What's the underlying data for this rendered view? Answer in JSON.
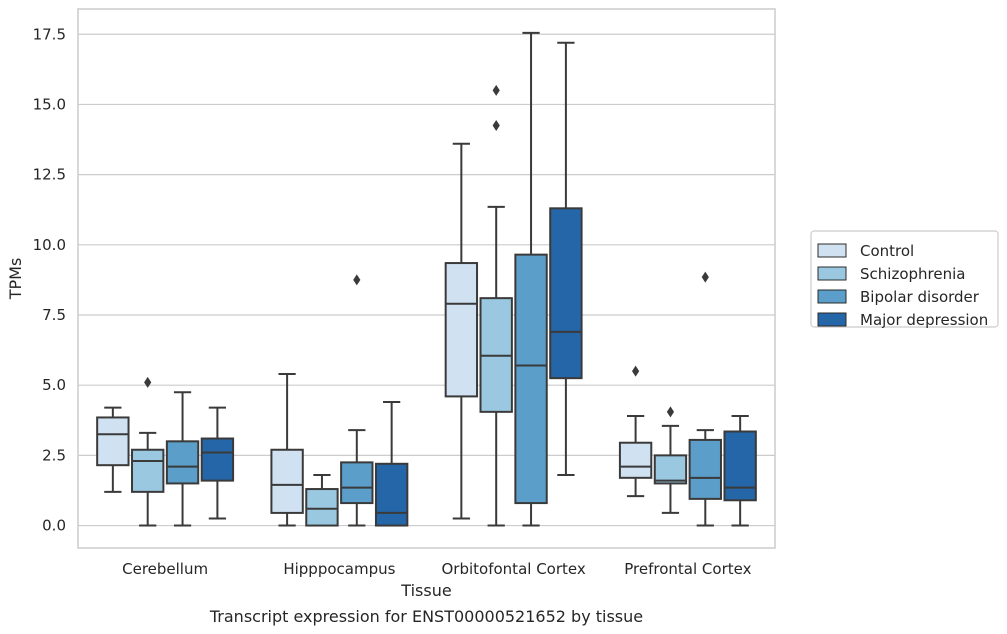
{
  "chart_data": {
    "type": "box",
    "title": "Transcript expression for ENST00000521652 by tissue",
    "xlabel": "Tissue",
    "ylabel": "TPMs",
    "ylim": [
      -0.8,
      18.4
    ],
    "yticks": [
      0.0,
      2.5,
      5.0,
      7.5,
      10.0,
      12.5,
      15.0,
      17.5
    ],
    "ytick_labels": [
      "0.0",
      "2.5",
      "5.0",
      "7.5",
      "10.0",
      "12.5",
      "15.0",
      "17.5"
    ],
    "grid": "horizontal",
    "legend_placement": "right",
    "categories": [
      "Cerebellum",
      "Hipppocampus",
      "Orbitofontal Cortex",
      "Prefrontal Cortex"
    ],
    "series": [
      {
        "name": "Control",
        "color": "#d0e2f2",
        "boxes": [
          {
            "whisker_low": 1.2,
            "q1": 2.15,
            "median": 3.25,
            "q3": 3.85,
            "whisker_high": 4.2,
            "outliers": []
          },
          {
            "whisker_low": 0.0,
            "q1": 0.45,
            "median": 1.45,
            "q3": 2.7,
            "whisker_high": 5.4,
            "outliers": []
          },
          {
            "whisker_low": 0.25,
            "q1": 4.6,
            "median": 7.9,
            "q3": 9.35,
            "whisker_high": 13.6,
            "outliers": []
          },
          {
            "whisker_low": 1.05,
            "q1": 1.7,
            "median": 2.1,
            "q3": 2.95,
            "whisker_high": 3.9,
            "outliers": [
              5.5
            ]
          }
        ]
      },
      {
        "name": "Schizophrenia",
        "color": "#9ac8e0",
        "boxes": [
          {
            "whisker_low": 0.0,
            "q1": 1.2,
            "median": 2.3,
            "q3": 2.7,
            "whisker_high": 3.3,
            "outliers": [
              5.1
            ]
          },
          {
            "whisker_low": 0.0,
            "q1": 0.0,
            "median": 0.6,
            "q3": 1.3,
            "whisker_high": 1.8,
            "outliers": []
          },
          {
            "whisker_low": 0.0,
            "q1": 4.05,
            "median": 6.05,
            "q3": 8.1,
            "whisker_high": 11.35,
            "outliers": [
              14.25,
              15.5
            ]
          },
          {
            "whisker_low": 0.45,
            "q1": 1.5,
            "median": 1.6,
            "q3": 2.5,
            "whisker_high": 3.55,
            "outliers": [
              4.05
            ]
          }
        ]
      },
      {
        "name": "Bipolar disorder",
        "color": "#5a9ec9",
        "boxes": [
          {
            "whisker_low": 0.0,
            "q1": 1.5,
            "median": 2.1,
            "q3": 3.0,
            "whisker_high": 4.75,
            "outliers": []
          },
          {
            "whisker_low": 0.0,
            "q1": 0.8,
            "median": 1.35,
            "q3": 2.25,
            "whisker_high": 3.4,
            "outliers": [
              8.75
            ]
          },
          {
            "whisker_low": 0.0,
            "q1": 0.8,
            "median": 5.7,
            "q3": 9.65,
            "whisker_high": 17.55,
            "outliers": []
          },
          {
            "whisker_low": 0.0,
            "q1": 0.95,
            "median": 1.7,
            "q3": 3.05,
            "whisker_high": 3.4,
            "outliers": [
              8.85
            ]
          }
        ]
      },
      {
        "name": "Major depression",
        "color": "#2466a7",
        "boxes": [
          {
            "whisker_low": 0.25,
            "q1": 1.6,
            "median": 2.6,
            "q3": 3.1,
            "whisker_high": 4.2,
            "outliers": []
          },
          {
            "whisker_low": 0.0,
            "q1": 0.0,
            "median": 0.45,
            "q3": 2.2,
            "whisker_high": 4.4,
            "outliers": []
          },
          {
            "whisker_low": 1.8,
            "q1": 5.25,
            "median": 6.9,
            "q3": 11.3,
            "whisker_high": 17.2,
            "outliers": []
          },
          {
            "whisker_low": 0.0,
            "q1": 0.9,
            "median": 1.35,
            "q3": 3.35,
            "whisker_high": 3.9,
            "outliers": []
          }
        ]
      }
    ]
  }
}
